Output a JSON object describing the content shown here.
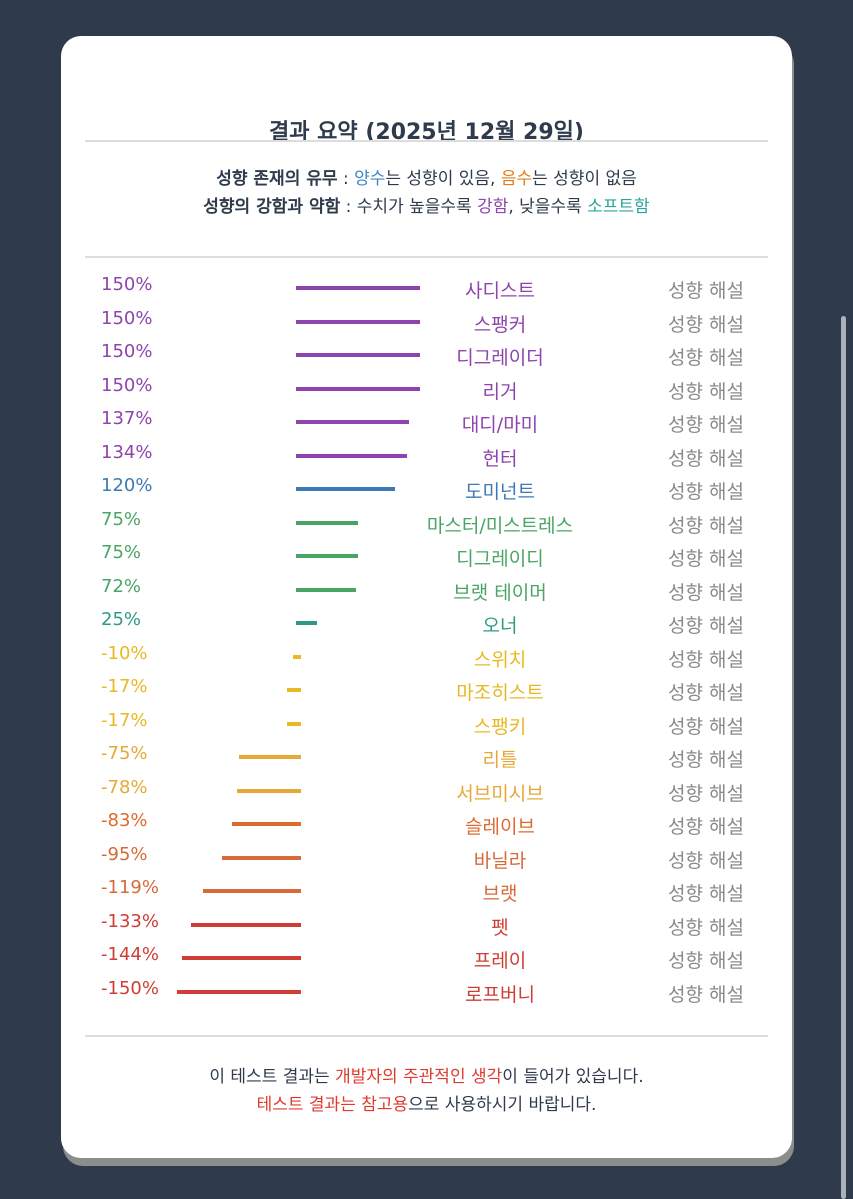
{
  "title": "결과 요약 (2025년 12월 29일)",
  "legend": {
    "line1": {
      "label": "성향 존재의 유무",
      "sep": " : ",
      "positive": "양수",
      "t1": "는 성향이 있음, ",
      "negative": "음수",
      "t2": "는 성향이 없음"
    },
    "line2": {
      "label": "성향의 강함과 약함",
      "sep": " : 수치가 높을수록 ",
      "strong": "강함",
      "t1": ", 낮을수록 ",
      "soft": "소프트함"
    }
  },
  "colors": {
    "background": "#2f3b4c",
    "card": "#ffffff",
    "text": "#2f3b4c",
    "blue": "#3d86c6",
    "orange": "#e07c1f",
    "purple": "#8e44ad",
    "teal": "#2aa59a",
    "red": "#e03a2f",
    "muted": "#8a8a8a"
  },
  "chart_data": {
    "type": "bar",
    "orientation": "horizontal",
    "categories": [
      "사디스트",
      "스팽커",
      "디그레이더",
      "리거",
      "대디/마미",
      "헌터",
      "도미넌트",
      "마스터/미스트레스",
      "디그레이디",
      "브랫 테이머",
      "오너",
      "스위치",
      "마조히스트",
      "스팽키",
      "리틀",
      "서브미시브",
      "슬레이브",
      "바닐라",
      "브랫",
      "펫",
      "프레이",
      "로프버니"
    ],
    "values": [
      150,
      150,
      150,
      150,
      137,
      134,
      120,
      75,
      75,
      72,
      25,
      -10,
      -17,
      -17,
      -75,
      -78,
      -83,
      -95,
      -119,
      -133,
      -144,
      -150
    ],
    "labels": [
      "150%",
      "150%",
      "150%",
      "150%",
      "137%",
      "134%",
      "120%",
      "75%",
      "75%",
      "72%",
      "25%",
      "-10%",
      "-17%",
      "-17%",
      "-75%",
      "-78%",
      "-83%",
      "-95%",
      "-119%",
      "-133%",
      "-144%",
      "-150%"
    ],
    "colors": [
      "#8e44ad",
      "#8e44ad",
      "#8e44ad",
      "#8e44ad",
      "#8e44ad",
      "#8e44ad",
      "#3d7ab5",
      "#4aa564",
      "#4aa564",
      "#4aa564",
      "#2e9a85",
      "#e8b923",
      "#e8b923",
      "#e8b923",
      "#e6a935",
      "#e6a935",
      "#dd6a2e",
      "#d7693a",
      "#d7693a",
      "#cf3e34",
      "#cf3e34",
      "#cf3e34"
    ],
    "link_label": "성향 해설",
    "xlim": [
      -150,
      150
    ]
  },
  "footer": {
    "line1": {
      "t1": "이 테스트 결과는 ",
      "highlight": "개발자의 주관적인 생각",
      "t2": "이 들어가 있습니다."
    },
    "line2": {
      "highlight": "테스트 결과는 참고용",
      "t1": "으로 사용하시기 바랍니다."
    }
  }
}
